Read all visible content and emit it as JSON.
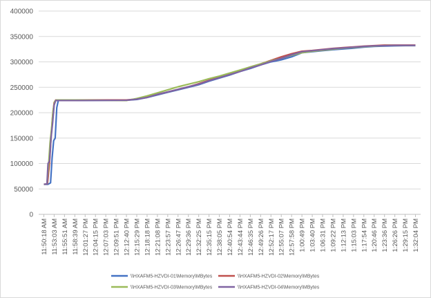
{
  "chart_data": {
    "type": "line",
    "title": "",
    "xlabel": "",
    "ylabel": "",
    "ylim": [
      0,
      400000
    ],
    "yticks": [
      "0",
      "50000",
      "100000",
      "150000",
      "200000",
      "250000",
      "300000",
      "350000",
      "400000"
    ],
    "grid": "horizontal",
    "legend_position": "bottom",
    "categories": [
      "11:50:18 AM",
      "11:53:03 AM",
      "11:55:51 AM",
      "11:58:39 AM",
      "12:01:27 PM",
      "12:04:15 PM",
      "12:07:03 PM",
      "12:09:51 PM",
      "12:12:40 PM",
      "12:15:29 PM",
      "12:18:18 PM",
      "12:21:08 PM",
      "12:23:57 PM",
      "12:26:47 PM",
      "12:29:36 PM",
      "12:32:25 PM",
      "12:35:15 PM",
      "12:38:05 PM",
      "12:40:54 PM",
      "12:43:44 PM",
      "12:46:35 PM",
      "12:49:26 PM",
      "12:52:17 PM",
      "12:55:07 PM",
      "12:57:58 PM",
      "1:00:49 PM",
      "1:03:40 PM",
      "1:06:31 PM",
      "1:09:22 PM",
      "1:12:13 PM",
      "1:15:03 PM",
      "1:17:54 PM",
      "1:20:46 PM",
      "1:23:36 PM",
      "1:26:26 PM",
      "1:29:15 PM",
      "1:32:04 PM"
    ],
    "series": [
      {
        "name": "\\\\HXAFM5-HZVDI-01\\Memory\\MBytes",
        "color": "#4472c4",
        "values": [
          [
            0,
            59000
          ],
          [
            0.4,
            59000
          ],
          [
            0.65,
            62000
          ],
          [
            0.8,
            110000
          ],
          [
            0.95,
            145000
          ],
          [
            1.1,
            150000
          ],
          [
            1.25,
            210000
          ],
          [
            1.4,
            224000
          ],
          [
            3,
            224000
          ],
          [
            8,
            224500
          ],
          [
            9,
            226000
          ],
          [
            10,
            230000
          ],
          [
            11,
            235000
          ],
          [
            12,
            240000
          ],
          [
            13,
            245000
          ],
          [
            14,
            250000
          ],
          [
            15,
            255000
          ],
          [
            16,
            262000
          ],
          [
            17,
            268000
          ],
          [
            18,
            274000
          ],
          [
            19,
            281000
          ],
          [
            20,
            287000
          ],
          [
            21,
            294000
          ],
          [
            22,
            300000
          ],
          [
            23,
            304000
          ],
          [
            24,
            310000
          ],
          [
            25,
            318000
          ],
          [
            26,
            320000
          ],
          [
            27,
            322000
          ],
          [
            28,
            324000
          ],
          [
            29,
            325500
          ],
          [
            30,
            327000
          ],
          [
            31,
            329000
          ],
          [
            32,
            330500
          ],
          [
            33,
            331000
          ],
          [
            34,
            331500
          ],
          [
            35,
            332000
          ],
          [
            36,
            332000
          ]
        ]
      },
      {
        "name": "\\\\HXAFM5-HZVDI-02\\Memory\\MBytes",
        "color": "#c0504d",
        "values": [
          [
            0,
            59000
          ],
          [
            0.35,
            60000
          ],
          [
            0.55,
            100000
          ],
          [
            0.7,
            150000
          ],
          [
            0.85,
            195000
          ],
          [
            1.0,
            220000
          ],
          [
            1.15,
            225000
          ],
          [
            3,
            225000
          ],
          [
            8,
            225000
          ],
          [
            9,
            227000
          ],
          [
            10,
            231000
          ],
          [
            11,
            236000
          ],
          [
            12,
            241000
          ],
          [
            13,
            246000
          ],
          [
            14,
            251000
          ],
          [
            15,
            257000
          ],
          [
            16,
            264000
          ],
          [
            17,
            270000
          ],
          [
            18,
            276000
          ],
          [
            19,
            283000
          ],
          [
            20,
            290000
          ],
          [
            21,
            296000
          ],
          [
            22,
            303000
          ],
          [
            23,
            310000
          ],
          [
            24,
            316000
          ],
          [
            25,
            321000
          ],
          [
            26,
            322500
          ],
          [
            27,
            324500
          ],
          [
            28,
            326500
          ],
          [
            29,
            328000
          ],
          [
            30,
            329500
          ],
          [
            31,
            331000
          ],
          [
            32,
            332000
          ],
          [
            33,
            333000
          ],
          [
            34,
            333000
          ],
          [
            35,
            333000
          ],
          [
            36,
            333000
          ]
        ]
      },
      {
        "name": "\\\\HXAFM5-HZVDI-03\\Memory\\MBytes",
        "color": "#9bbb59",
        "values": [
          [
            0,
            59000
          ],
          [
            0.3,
            60000
          ],
          [
            0.45,
            95000
          ],
          [
            0.6,
            140000
          ],
          [
            0.75,
            170000
          ],
          [
            0.9,
            205000
          ],
          [
            1.05,
            222000
          ],
          [
            1.2,
            225000
          ],
          [
            3,
            225000
          ],
          [
            8,
            224000
          ],
          [
            9,
            228000
          ],
          [
            10,
            233000
          ],
          [
            11,
            239000
          ],
          [
            12,
            245000
          ],
          [
            13,
            251000
          ],
          [
            14,
            256000
          ],
          [
            15,
            261000
          ],
          [
            16,
            267000
          ],
          [
            17,
            272000
          ],
          [
            18,
            278000
          ],
          [
            19,
            284000
          ],
          [
            20,
            290000
          ],
          [
            21,
            296000
          ],
          [
            22,
            302000
          ],
          [
            23,
            307000
          ],
          [
            24,
            313000
          ],
          [
            25,
            318000
          ],
          [
            26,
            321000
          ],
          [
            27,
            323000
          ],
          [
            28,
            325000
          ],
          [
            29,
            327000
          ],
          [
            30,
            328500
          ],
          [
            31,
            330000
          ],
          [
            32,
            331000
          ],
          [
            33,
            332000
          ],
          [
            34,
            332500
          ],
          [
            35,
            332500
          ],
          [
            36,
            332500
          ]
        ]
      },
      {
        "name": "\\\\HXAFM5-HZVDI-04\\Memory\\MBytes",
        "color": "#8064a2",
        "values": [
          [
            0,
            59000
          ],
          [
            0.3,
            60000
          ],
          [
            0.4,
            100000
          ],
          [
            0.55,
            105000
          ],
          [
            0.7,
            150000
          ],
          [
            0.85,
            180000
          ],
          [
            1.0,
            215000
          ],
          [
            1.15,
            224000
          ],
          [
            3,
            224000
          ],
          [
            8,
            224500
          ],
          [
            9,
            226500
          ],
          [
            10,
            230000
          ],
          [
            11,
            236000
          ],
          [
            12,
            241000
          ],
          [
            13,
            246000
          ],
          [
            14,
            251000
          ],
          [
            15,
            256000
          ],
          [
            16,
            263000
          ],
          [
            17,
            269000
          ],
          [
            18,
            275000
          ],
          [
            19,
            281000
          ],
          [
            20,
            288000
          ],
          [
            21,
            294000
          ],
          [
            22,
            301000
          ],
          [
            23,
            307000
          ],
          [
            24,
            314000
          ],
          [
            25,
            320000
          ],
          [
            26,
            322000
          ],
          [
            27,
            324000
          ],
          [
            28,
            326000
          ],
          [
            29,
            327500
          ],
          [
            30,
            329000
          ],
          [
            31,
            330500
          ],
          [
            32,
            331500
          ],
          [
            33,
            332000
          ],
          [
            34,
            332500
          ],
          [
            35,
            332500
          ],
          [
            36,
            332500
          ]
        ]
      }
    ]
  }
}
